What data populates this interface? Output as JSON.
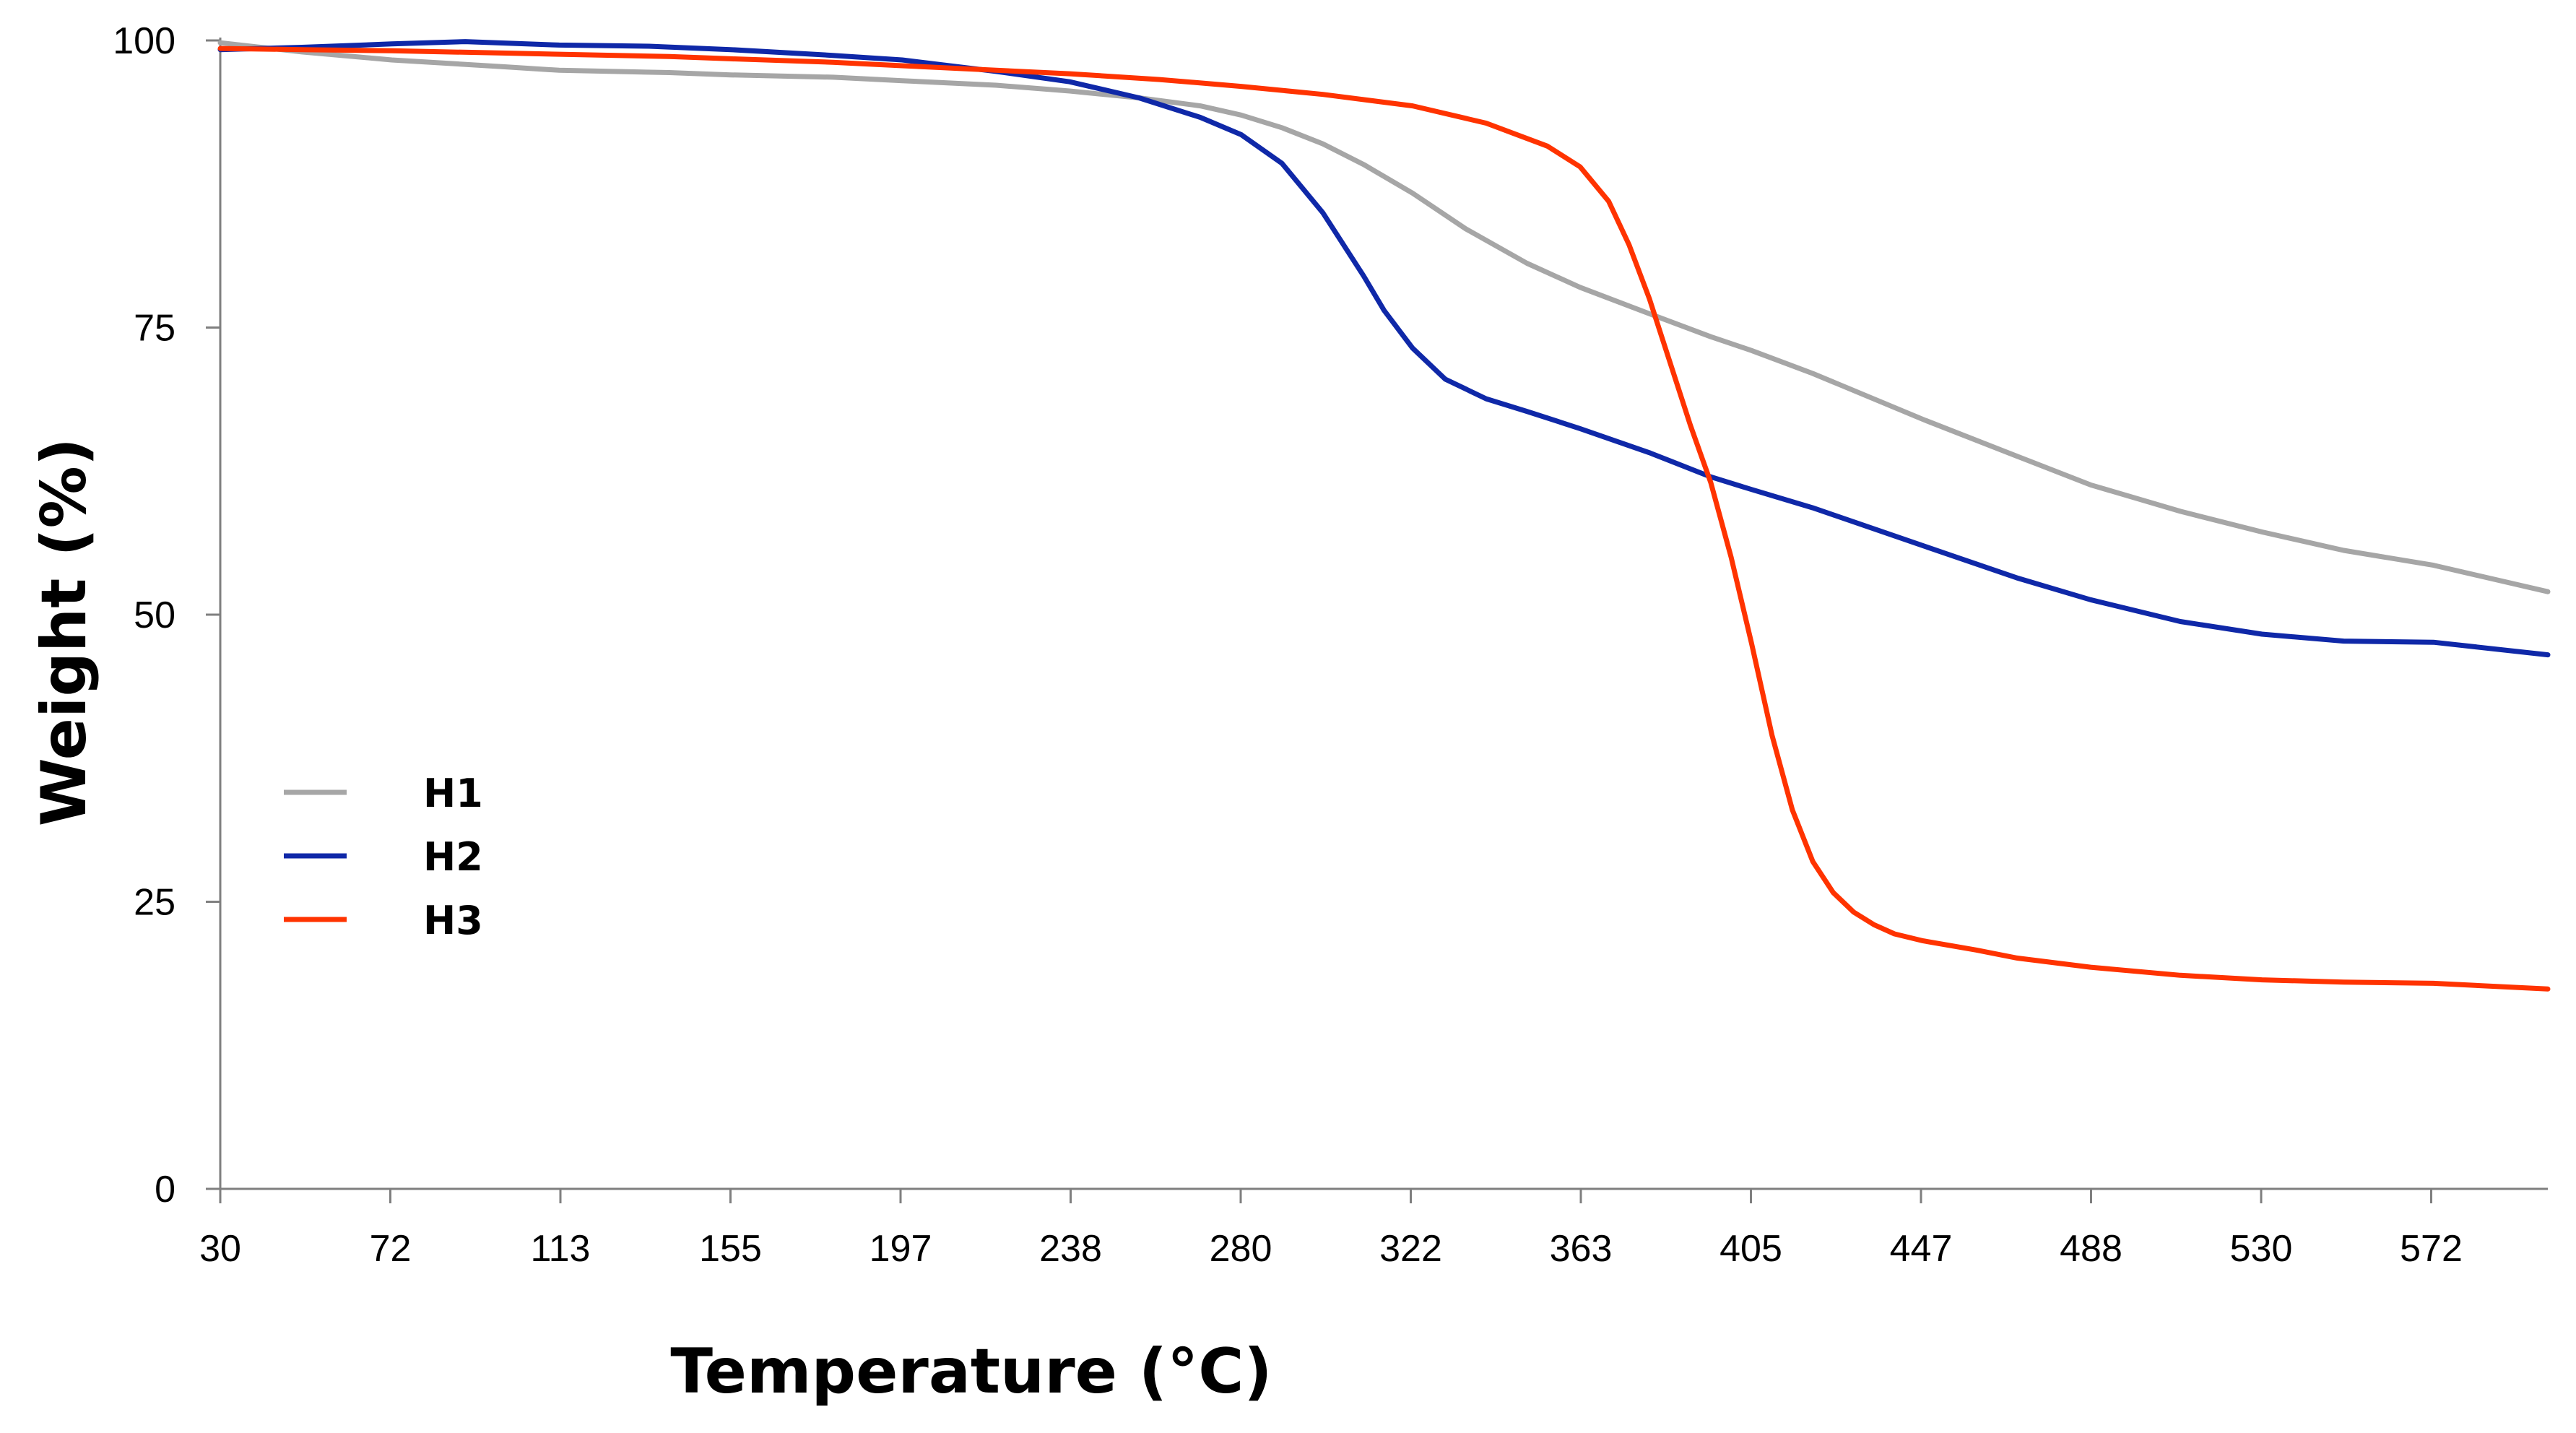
{
  "chart_data": {
    "type": "line",
    "title": "",
    "xlabel": "Temperature (°C)",
    "ylabel": "Weight (%)",
    "xlim": [
      30,
      600
    ],
    "ylim": [
      0,
      100
    ],
    "x_ticks": [
      "30",
      "72",
      "113",
      "155",
      "197",
      "238",
      "280",
      "322",
      "363",
      "405",
      "447",
      "488",
      "530",
      "572"
    ],
    "y_ticks": [
      "0",
      "25",
      "50",
      "75",
      "100"
    ],
    "grid": false,
    "legend_position": "left",
    "series": [
      {
        "name": "H1",
        "color": "#a6a6a6",
        "x": [
          30,
          50,
          72,
          100,
          113,
          140,
          155,
          180,
          197,
          220,
          238,
          255,
          270,
          280,
          290,
          300,
          310,
          322,
          335,
          350,
          363,
          380,
          395,
          405,
          420,
          447,
          470,
          488,
          510,
          530,
          550,
          572,
          600
        ],
        "y": [
          99.8,
          99.0,
          98.3,
          97.7,
          97.4,
          97.2,
          97.0,
          96.8,
          96.5,
          96.1,
          95.6,
          95.0,
          94.3,
          93.5,
          92.4,
          91.0,
          89.2,
          86.7,
          83.6,
          80.6,
          78.5,
          76.2,
          74.2,
          73.0,
          71.0,
          67.0,
          63.8,
          61.3,
          59.0,
          57.2,
          55.6,
          54.3,
          52.0
        ]
      },
      {
        "name": "H2",
        "color": "#0f28a8",
        "x": [
          30,
          50,
          72,
          90,
          113,
          135,
          155,
          180,
          197,
          220,
          238,
          255,
          270,
          280,
          290,
          300,
          310,
          315,
          322,
          330,
          340,
          350,
          363,
          380,
          395,
          405,
          420,
          447,
          470,
          488,
          510,
          530,
          550,
          572,
          600
        ],
        "y": [
          99.2,
          99.4,
          99.7,
          99.9,
          99.6,
          99.5,
          99.2,
          98.7,
          98.3,
          97.3,
          96.4,
          95.0,
          93.3,
          91.8,
          89.3,
          85.0,
          79.5,
          76.5,
          73.2,
          70.5,
          68.8,
          67.7,
          66.2,
          64.1,
          62.0,
          60.9,
          59.3,
          56.0,
          53.2,
          51.3,
          49.4,
          48.3,
          47.7,
          47.6,
          46.5
        ]
      },
      {
        "name": "H3",
        "color": "#ff3300",
        "x": [
          30,
          50,
          72,
          100,
          113,
          140,
          155,
          180,
          197,
          220,
          238,
          260,
          280,
          300,
          322,
          340,
          355,
          363,
          370,
          375,
          380,
          385,
          390,
          395,
          400,
          405,
          410,
          415,
          420,
          425,
          430,
          435,
          440,
          447,
          460,
          470,
          488,
          510,
          530,
          550,
          572,
          600
        ],
        "y": [
          99.3,
          99.2,
          99.1,
          98.9,
          98.8,
          98.6,
          98.4,
          98.1,
          97.8,
          97.4,
          97.1,
          96.6,
          96.0,
          95.3,
          94.3,
          92.8,
          90.8,
          89.0,
          86.0,
          82.2,
          77.5,
          72.0,
          66.5,
          61.5,
          55.0,
          47.5,
          39.5,
          33.0,
          28.5,
          25.8,
          24.1,
          23.0,
          22.2,
          21.6,
          20.8,
          20.1,
          19.3,
          18.6,
          18.2,
          18.0,
          17.9,
          17.4
        ]
      }
    ]
  }
}
